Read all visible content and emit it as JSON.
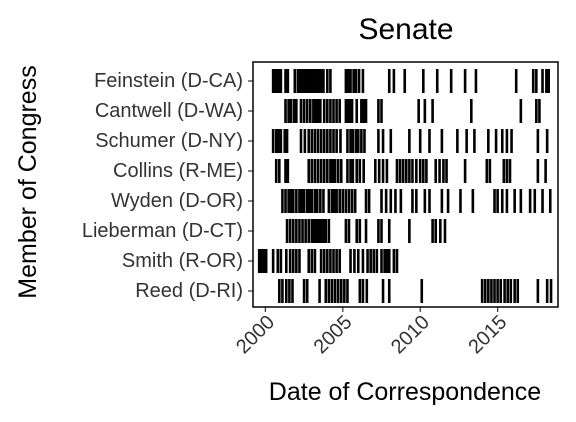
{
  "chart_data": {
    "type": "scatter",
    "title": "Senate",
    "xlabel": "Date of Correspondence",
    "ylabel": "Member of Congress",
    "xlim": [
      1999.2,
      2018.9
    ],
    "x_ticks": [
      "2000",
      "2005",
      "2010",
      "2015"
    ],
    "grid": false,
    "legend": "none",
    "members": [
      "Feinstein (D-CA)",
      "Cantwell (D-WA)",
      "Schumer (D-NY)",
      "Collins (R-ME)",
      "Wyden (D-OR)",
      "Lieberman (D-CT)",
      "Smith (R-OR)",
      "Reed (D-RI)"
    ],
    "series": [
      {
        "values": [
          2000.5,
          2000.65,
          2000.75,
          2000.9,
          2001.0,
          2001.3,
          2001.45,
          2001.9,
          2002.1,
          2002.25,
          2002.4,
          2002.55,
          2002.7,
          2002.85,
          2003.0,
          2003.15,
          2003.3,
          2003.45,
          2003.6,
          2003.75,
          2004.0,
          2004.2,
          2005.2,
          2005.35,
          2005.5,
          2005.7,
          2005.85,
          2006.05,
          2006.3,
          2008.0,
          2008.3,
          2009.0,
          2010.2,
          2011.1,
          2012.0,
          2012.9,
          2013.6,
          2016.2,
          2017.3,
          2017.5,
          2017.9,
          2018.15,
          2018.3
        ]
      },
      {
        "values": [
          2001.3,
          2001.5,
          2001.65,
          2001.85,
          2002.0,
          2002.3,
          2002.5,
          2002.7,
          2002.9,
          2003.1,
          2003.25,
          2003.4,
          2003.55,
          2003.8,
          2004.0,
          2004.2,
          2004.4,
          2004.6,
          2004.8,
          2005.2,
          2005.35,
          2005.5,
          2005.6,
          2005.9,
          2006.2,
          2006.35,
          2006.5,
          2007.3,
          2007.5,
          2009.9,
          2010.3,
          2010.8,
          2013.3,
          2016.5,
          2017.5,
          2017.7
        ]
      },
      {
        "values": [
          2000.5,
          2000.7,
          2000.85,
          2001.0,
          2001.25,
          2001.4,
          2002.3,
          2002.55,
          2002.8,
          2003.0,
          2003.2,
          2003.4,
          2003.6,
          2003.8,
          2004.0,
          2004.2,
          2004.4,
          2004.6,
          2004.85,
          2005.3,
          2005.5,
          2005.65,
          2005.85,
          2006.0,
          2006.2,
          2006.4,
          2007.3,
          2007.6,
          2008.1,
          2009.3,
          2010.0,
          2010.6,
          2011.4,
          2012.4,
          2013.0,
          2013.5,
          2014.4,
          2014.9,
          2015.3,
          2015.6,
          2015.9,
          2017.6,
          2018.2
        ]
      },
      {
        "values": [
          2000.7,
          2000.9,
          2001.3,
          2001.45,
          2002.8,
          2003.0,
          2003.2,
          2003.4,
          2003.6,
          2003.8,
          2004.0,
          2004.2,
          2004.35,
          2004.5,
          2004.7,
          2004.9,
          2005.3,
          2005.5,
          2005.65,
          2005.9,
          2006.1,
          2006.35,
          2007.1,
          2007.35,
          2007.6,
          2007.85,
          2008.5,
          2008.7,
          2008.9,
          2009.1,
          2009.3,
          2009.5,
          2009.75,
          2010.0,
          2010.2,
          2010.4,
          2011.0,
          2011.25,
          2011.5,
          2011.7,
          2012.9,
          2014.3,
          2014.5,
          2015.4,
          2015.6,
          2015.8,
          2017.6,
          2018.1
        ]
      },
      {
        "values": [
          2001.1,
          2001.3,
          2001.5,
          2001.65,
          2001.8,
          2002.0,
          2002.2,
          2002.35,
          2002.5,
          2002.7,
          2002.85,
          2003.0,
          2003.2,
          2003.35,
          2003.55,
          2003.75,
          2004.1,
          2004.3,
          2004.45,
          2004.6,
          2004.8,
          2005.0,
          2005.2,
          2005.4,
          2005.6,
          2005.8,
          2006.5,
          2006.7,
          2007.5,
          2007.8,
          2008.1,
          2008.4,
          2008.75,
          2009.5,
          2009.75,
          2010.3,
          2010.6,
          2011.4,
          2011.8,
          2012.6,
          2013.4,
          2014.8,
          2015.0,
          2015.3,
          2015.6,
          2016.1,
          2016.5,
          2017.1,
          2017.4,
          2017.9,
          2018.4
        ]
      },
      {
        "values": [
          2001.4,
          2001.6,
          2001.8,
          2002.0,
          2002.2,
          2002.4,
          2002.6,
          2002.8,
          2003.0,
          2003.15,
          2003.3,
          2003.45,
          2003.6,
          2003.75,
          2003.9,
          2004.1,
          2005.2,
          2005.4,
          2005.9,
          2006.1,
          2006.5,
          2007.3,
          2007.5,
          2008.0,
          2009.3,
          2010.8,
          2011.0,
          2011.3,
          2011.6
        ]
      },
      {
        "values": [
          1999.6,
          1999.75,
          1999.9,
          2000.05,
          2000.5,
          2000.8,
          2001.0,
          2001.35,
          2001.6,
          2001.8,
          2002.0,
          2002.2,
          2002.8,
          2003.0,
          2003.2,
          2003.6,
          2003.8,
          2004.0,
          2004.2,
          2004.4,
          2004.6,
          2004.8,
          2005.5,
          2005.75,
          2006.0,
          2006.3,
          2006.6,
          2006.8,
          2007.0,
          2007.2,
          2007.5,
          2007.7,
          2007.85,
          2008.0,
          2008.3,
          2008.5
        ]
      },
      {
        "values": [
          2000.9,
          2001.1,
          2001.35,
          2001.55,
          2001.75,
          2002.5,
          2002.7,
          2003.5,
          2003.9,
          2004.1,
          2004.3,
          2004.5,
          2004.7,
          2004.9,
          2005.1,
          2005.3,
          2006.1,
          2006.3,
          2006.55,
          2007.6,
          2008.0,
          2010.1,
          2014.0,
          2014.2,
          2014.4,
          2014.6,
          2014.8,
          2015.0,
          2015.2,
          2015.45,
          2015.65,
          2015.85,
          2016.1,
          2016.3,
          2017.6,
          2018.2,
          2018.45
        ]
      }
    ]
  }
}
